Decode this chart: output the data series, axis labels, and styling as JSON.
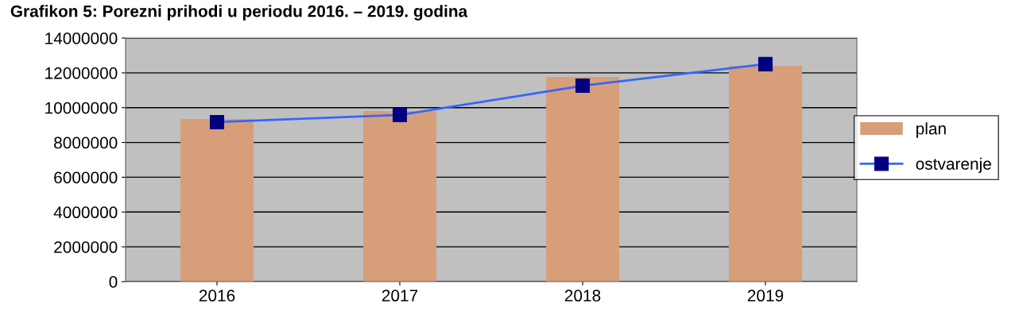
{
  "chart_data": {
    "type": "bar",
    "title": "Grafikon 5: Porezni prihodi u periodu 2016. – 2019. godina",
    "categories": [
      "2016",
      "2017",
      "2018",
      "2019"
    ],
    "series": [
      {
        "name": "plan",
        "color": "#d79e7a",
        "values": [
          9350000,
          9800000,
          11760000,
          12400000
        ]
      },
      {
        "name": "ostvarenje",
        "type": "line",
        "color": "#3366ff",
        "marker": "square",
        "values": [
          9170000,
          9580000,
          11260000,
          12500000
        ]
      }
    ],
    "ylim": [
      0,
      14000000
    ],
    "yticks": [
      0,
      2000000,
      4000000,
      6000000,
      8000000,
      10000000,
      12000000,
      14000000
    ],
    "grid": "y",
    "legend": "right"
  }
}
